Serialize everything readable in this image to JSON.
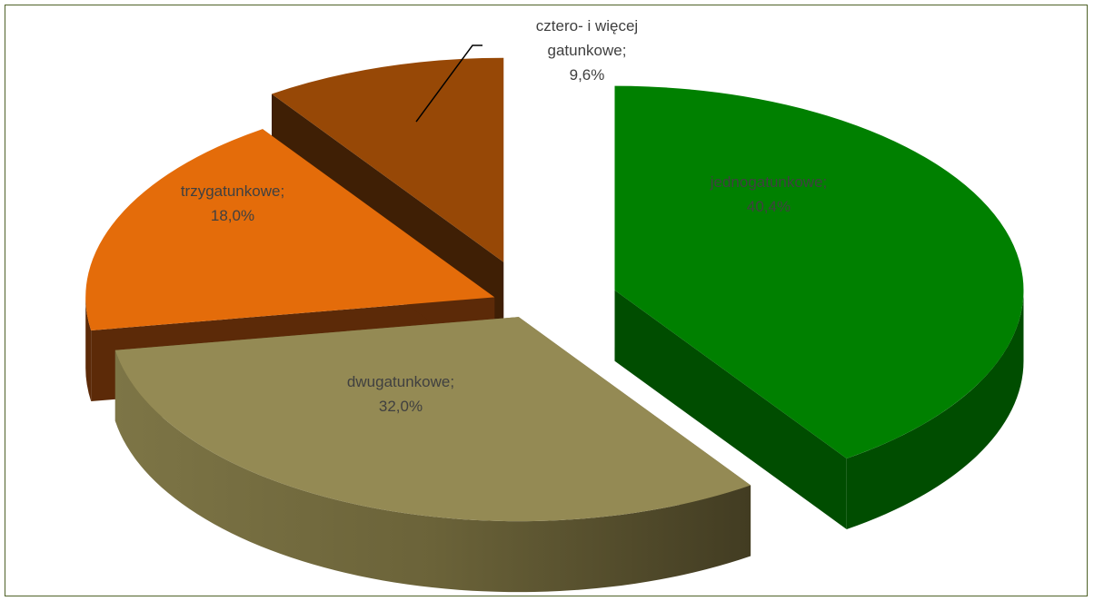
{
  "chart_data": {
    "type": "pie",
    "title": "",
    "legend": "none",
    "slices": [
      {
        "label_lines": [
          "jednogatunkowe;",
          "40,4%"
        ],
        "value": 40.4,
        "color": "#008000",
        "side_color": "#004d00"
      },
      {
        "label_lines": [
          "dwugatunkowe;",
          "32,0%"
        ],
        "value": 32.0,
        "color": "#948a54",
        "side_color": "#6b6339"
      },
      {
        "label_lines": [
          "trzygatunkowe;",
          "18,0%"
        ],
        "value": 18.0,
        "color": "#e46c0a",
        "side_color": "#5c2a08"
      },
      {
        "label_lines": [
          "cztero- i więcej",
          "gatunkowe;",
          "9,6%"
        ],
        "value": 9.6,
        "color": "#974806",
        "side_color": "#3f1f05"
      }
    ]
  }
}
